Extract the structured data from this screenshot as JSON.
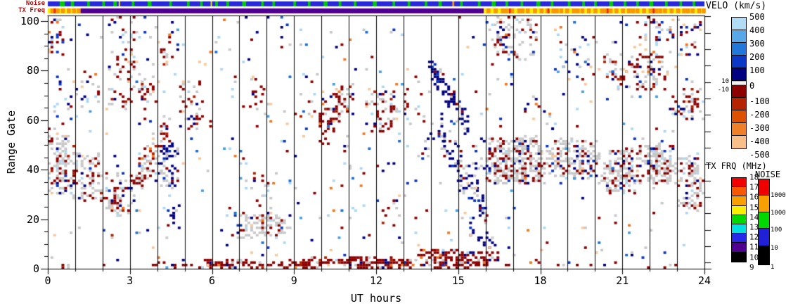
{
  "chart_data": {
    "type": "heatmap",
    "xlabel": "UT hours",
    "ylabel": "Range Gate",
    "x_range": [
      0,
      24
    ],
    "x_major_ticks": [
      "0",
      "3",
      "6",
      "9",
      "12",
      "15",
      "18",
      "21",
      "24"
    ],
    "x_minor_step": 1,
    "y_range": [
      0,
      102
    ],
    "y_major_ticks": [
      "0",
      "20",
      "40",
      "60",
      "80",
      "100"
    ],
    "y_minor_step": 5,
    "grid_vertical_lines_every_hour": true,
    "colorbars": {
      "velo": {
        "title": "VELO (km/s)",
        "tick_labels": [
          "500",
          "400",
          "300",
          "200",
          "100",
          "0",
          "-100",
          "-200",
          "-300",
          "-400",
          "-500"
        ],
        "positive_colors": [
          "#b0dcf4",
          "#58a8e8",
          "#2278d8",
          "#0c38c8",
          "#000080"
        ],
        "negative_colors": [
          "#8c0000",
          "#b42400",
          "#dc5000",
          "#f08028",
          "#f8c088"
        ],
        "ground_scatter": {
          "labels": [
            "10",
            "-10"
          ],
          "color": "#c8c8c8"
        }
      },
      "txfreq": {
        "title": "TX FRQ (MHz)",
        "tick_labels": [
          "18",
          "17",
          "16",
          "15",
          "14",
          "13",
          "12",
          "11",
          "10",
          "9"
        ],
        "colors": [
          "#f00000",
          "#f85800",
          "#f8a000",
          "#f8f000",
          "#00d800",
          "#00e0e0",
          "#2828e8",
          "#500090",
          "#000000"
        ]
      },
      "noise": {
        "title": "NOISE",
        "tick_labels": [
          "10000",
          "1000",
          "100",
          "10",
          "1"
        ],
        "colors": [
          "#f00000",
          "#f8a000",
          "#00d800",
          "#2020d8",
          "#000000"
        ]
      }
    },
    "strips": {
      "label_color": "#aa1111",
      "noise": {
        "label": "Noise",
        "base_color": "#2828dc",
        "green_color": "#00cc00",
        "green_segments": [
          [
            0.018,
            0.026
          ],
          [
            0.035,
            0.04
          ],
          [
            0.06,
            0.064
          ],
          [
            0.083,
            0.087
          ],
          [
            0.1,
            0.105
          ],
          [
            0.128,
            0.132
          ],
          [
            0.152,
            0.158
          ],
          [
            0.185,
            0.189
          ],
          [
            0.212,
            0.216
          ],
          [
            0.232,
            0.236
          ],
          [
            0.255,
            0.259
          ],
          [
            0.272,
            0.276
          ],
          [
            0.296,
            0.302
          ],
          [
            0.325,
            0.329
          ],
          [
            0.342,
            0.346
          ],
          [
            0.374,
            0.378
          ],
          [
            0.396,
            0.4
          ],
          [
            0.42,
            0.426
          ],
          [
            0.443,
            0.447
          ],
          [
            0.466,
            0.47
          ],
          [
            0.495,
            0.501
          ],
          [
            0.525,
            0.529
          ],
          [
            0.548,
            0.552
          ],
          [
            0.574,
            0.578
          ],
          [
            0.595,
            0.6
          ],
          [
            0.628,
            0.632
          ],
          [
            0.655,
            0.659
          ],
          [
            0.676,
            0.682
          ],
          [
            0.697,
            0.701
          ],
          [
            0.72,
            0.724
          ],
          [
            0.744,
            0.75
          ],
          [
            0.766,
            0.77
          ],
          [
            0.792,
            0.796
          ],
          [
            0.814,
            0.818
          ],
          [
            0.832,
            0.836
          ],
          [
            0.855,
            0.861
          ],
          [
            0.877,
            0.881
          ],
          [
            0.896,
            0.9
          ],
          [
            0.916,
            0.922
          ],
          [
            0.94,
            0.944
          ],
          [
            0.962,
            0.966
          ],
          [
            0.982,
            0.986
          ]
        ],
        "accents": [
          {
            "f0": 0.108,
            "f1": 0.11,
            "color": "#f8ec00"
          },
          {
            "f0": 0.248,
            "f1": 0.25,
            "color": "#f8ec00"
          },
          {
            "f0": 0.616,
            "f1": 0.619,
            "color": "#f89800"
          }
        ]
      },
      "txfreq": {
        "label": "TX Freq",
        "segments": [
          {
            "f0": 0.0,
            "f1": 0.048,
            "color": "#f8ec00"
          },
          {
            "f0": 0.048,
            "f1": 0.664,
            "color": "#500090"
          },
          {
            "f0": 0.664,
            "f1": 1.0,
            "color": "#f8ec00"
          }
        ],
        "orange_color": "#f89800",
        "orange_tick_width": 0.006,
        "orange_ticks": [
          0.004,
          0.012,
          0.02,
          0.029,
          0.037,
          0.044,
          0.668,
          0.679,
          0.69,
          0.695,
          0.704,
          0.715,
          0.72,
          0.728,
          0.739,
          0.749,
          0.758,
          0.767,
          0.772,
          0.779,
          0.788,
          0.798,
          0.804,
          0.811,
          0.821,
          0.831,
          0.841,
          0.846,
          0.854,
          0.863,
          0.873,
          0.882,
          0.888,
          0.895,
          0.905,
          0.915,
          0.924,
          0.93,
          0.937,
          0.947,
          0.957,
          0.966,
          0.972,
          0.979,
          0.989,
          0.996
        ],
        "red_color": "#e82800",
        "red_tick_width": 0.003,
        "red_ticks": [
          0.009,
          0.702,
          0.761,
          0.851,
          0.921
        ]
      }
    },
    "cells": {
      "seed": 20240,
      "dt": 0.1,
      "colors": {
        "navy": "#000080",
        "blue": "#0a35c0",
        "medblue": "#1e6fd0",
        "sky": "#4a9ee0",
        "lightblue": "#aed7f2",
        "darkred": "#8b0000",
        "red": "#b22000",
        "orange": "#f07820",
        "peach": "#f8c89a",
        "gray": "#c8c8c8"
      },
      "palettes": {
        "gs_mixed": [
          [
            "gray",
            60
          ],
          [
            "darkred",
            20
          ],
          [
            "navy",
            6
          ],
          [
            "blue",
            4
          ],
          [
            "lightblue",
            4
          ],
          [
            "peach",
            3
          ],
          [
            "red",
            3
          ]
        ],
        "red_gs": [
          [
            "darkred",
            45
          ],
          [
            "gray",
            33
          ],
          [
            "navy",
            8
          ],
          [
            "red",
            5
          ],
          [
            "peach",
            4
          ],
          [
            "lightblue",
            5
          ]
        ],
        "red": [
          [
            "darkred",
            70
          ],
          [
            "red",
            10
          ],
          [
            "gray",
            9
          ],
          [
            "navy",
            6
          ],
          [
            "peach",
            3
          ],
          [
            "orange",
            2
          ]
        ],
        "navy": [
          [
            "navy",
            78
          ],
          [
            "blue",
            8
          ],
          [
            "gray",
            8
          ],
          [
            "darkred",
            4
          ],
          [
            "lightblue",
            2
          ]
        ],
        "navy_gs": [
          [
            "navy",
            50
          ],
          [
            "gray",
            36
          ],
          [
            "darkred",
            8
          ],
          [
            "blue",
            6
          ]
        ],
        "red_navy": [
          [
            "darkred",
            40
          ],
          [
            "navy",
            20
          ],
          [
            "gray",
            22
          ],
          [
            "red",
            6
          ],
          [
            "peach",
            6
          ],
          [
            "lightblue",
            6
          ]
        ],
        "mixed": [
          [
            "darkred",
            26
          ],
          [
            "navy",
            22
          ],
          [
            "gray",
            18
          ],
          [
            "lightblue",
            12
          ],
          [
            "peach",
            9
          ],
          [
            "orange",
            6
          ],
          [
            "blue",
            7
          ]
        ],
        "gs_red": [
          [
            "gray",
            64
          ],
          [
            "darkred",
            24
          ],
          [
            "navy",
            5
          ],
          [
            "lightblue",
            3
          ],
          [
            "peach",
            2
          ],
          [
            "blue",
            2
          ]
        ],
        "any": [
          [
            "darkred",
            16
          ],
          [
            "navy",
            13
          ],
          [
            "gray",
            15
          ],
          [
            "lightblue",
            15
          ],
          [
            "peach",
            13
          ],
          [
            "orange",
            8
          ],
          [
            "blue",
            8
          ],
          [
            "medblue",
            6
          ],
          [
            "sky",
            6
          ]
        ],
        "red_bottom": [
          [
            "darkred",
            78
          ],
          [
            "red",
            6
          ],
          [
            "gray",
            8
          ],
          [
            "navy",
            4
          ],
          [
            "orange",
            2
          ],
          [
            "lightblue",
            2
          ]
        ]
      },
      "clusters": [
        {
          "t0": 0.0,
          "t1": 0.9,
          "g0": 30,
          "g1": 53,
          "d": 0.55,
          "p": "gs_mixed"
        },
        {
          "t0": 0.9,
          "t1": 1.9,
          "g0": 27,
          "g1": 47,
          "d": 0.5,
          "p": "gs_mixed"
        },
        {
          "t0": 1.9,
          "t1": 2.7,
          "g0": 23,
          "g1": 38,
          "d": 0.4,
          "p": "gs_mixed"
        },
        {
          "t0": 0.0,
          "t1": 0.35,
          "g0": 52,
          "g1": 62,
          "d": 0.25,
          "p": "mixed"
        },
        {
          "t0": 0.0,
          "t1": 1.4,
          "g0": 56,
          "g1": 76,
          "d": 0.08,
          "p": "mixed"
        },
        {
          "t0": 0.0,
          "t1": 0.55,
          "g0": 86,
          "g1": 101,
          "d": 0.3,
          "p": "mixed"
        },
        {
          "t0": 1.1,
          "t1": 2.2,
          "g0": 62,
          "g1": 80,
          "d": 0.05,
          "p": "mixed"
        },
        {
          "t0": 2.2,
          "t1": 3.4,
          "g0": 64,
          "g1": 102,
          "d": 0.2,
          "p": "red_gs"
        },
        {
          "diag": 1,
          "t0": 2.3,
          "t1": 4.4,
          "c0": 20,
          "c1": 56,
          "hw": 8,
          "d": 0.32,
          "p": "red_gs"
        },
        {
          "diag": 1,
          "t0": 3.4,
          "t1": 4.5,
          "c0": 68,
          "c1": 90,
          "hw": 7,
          "d": 0.24,
          "p": "red_gs"
        },
        {
          "t0": 3.9,
          "t1": 4.75,
          "g0": 32,
          "g1": 50,
          "d": 0.45,
          "p": "navy_gs"
        },
        {
          "t0": 4.35,
          "t1": 4.8,
          "g0": 16,
          "g1": 26,
          "d": 0.5,
          "p": "navy"
        },
        {
          "t0": 4.8,
          "t1": 5.6,
          "g0": 60,
          "g1": 76,
          "d": 0.28,
          "p": "red_navy"
        },
        {
          "t0": 4.8,
          "t1": 5.9,
          "g0": 55,
          "g1": 62,
          "d": 0.15,
          "p": "red"
        },
        {
          "t0": 6.9,
          "t1": 8.8,
          "g0": 12,
          "g1": 22,
          "d": 0.38,
          "p": "gs_red"
        },
        {
          "t0": 7.2,
          "t1": 8.2,
          "g0": 26,
          "g1": 38,
          "d": 0.2,
          "p": "red_gs"
        },
        {
          "t0": 7.25,
          "t1": 7.85,
          "g0": 64,
          "g1": 77,
          "d": 0.28,
          "p": "red"
        },
        {
          "t0": 8.0,
          "t1": 8.5,
          "g0": 58,
          "g1": 68,
          "d": 0.08,
          "p": "mixed"
        },
        {
          "t0": 9.0,
          "t1": 9.8,
          "g0": 60,
          "g1": 71,
          "d": 0.14,
          "p": "red_gs"
        },
        {
          "diag": 1,
          "t0": 9.9,
          "t1": 11.15,
          "c0": 58,
          "c1": 70,
          "hw": 8,
          "d": 0.33,
          "p": "red"
        },
        {
          "t0": 11.6,
          "t1": 12.85,
          "g0": 55,
          "g1": 72,
          "d": 0.3,
          "p": "red_gs"
        },
        {
          "t0": 12.2,
          "t1": 13.4,
          "g0": 18,
          "g1": 30,
          "d": 0.08,
          "p": "red_gs"
        },
        {
          "t0": 13.0,
          "t1": 13.9,
          "g0": 58,
          "g1": 72,
          "d": 0.12,
          "p": "red_gs"
        },
        {
          "t0": 10.5,
          "t1": 11.4,
          "g0": 36,
          "g1": 50,
          "d": 0.05,
          "p": "mixed"
        },
        {
          "diag": 1,
          "t0": 13.9,
          "t1": 15.35,
          "c0": 82,
          "c1": 56,
          "hw": 5,
          "d": 0.5,
          "p": "navy"
        },
        {
          "diag": 1,
          "t0": 14.25,
          "t1": 15.95,
          "c0": 56,
          "c1": 22,
          "hw": 8,
          "d": 0.45,
          "p": "navy_gs"
        },
        {
          "t0": 13.55,
          "t1": 14.15,
          "g0": 44,
          "g1": 54,
          "d": 0.3,
          "p": "navy_gs"
        },
        {
          "t0": 15.5,
          "t1": 16.1,
          "g0": 40,
          "g1": 52,
          "d": 0.3,
          "p": "navy_gs"
        },
        {
          "diag": 1,
          "t0": 15.3,
          "t1": 16.5,
          "c0": 18,
          "c1": 7,
          "hw": 4,
          "d": 0.25,
          "p": "navy"
        },
        {
          "t0": 16.0,
          "t1": 18.2,
          "g0": 34,
          "g1": 53,
          "d": 0.55,
          "p": "gs_red"
        },
        {
          "t0": 18.2,
          "t1": 20.1,
          "g0": 36,
          "g1": 52,
          "d": 0.5,
          "p": "gs_red"
        },
        {
          "t0": 20.1,
          "t1": 21.6,
          "g0": 30,
          "g1": 48,
          "d": 0.5,
          "p": "gs_red"
        },
        {
          "t0": 21.6,
          "t1": 23.0,
          "g0": 33,
          "g1": 50,
          "d": 0.55,
          "p": "gs_red"
        },
        {
          "t0": 23.0,
          "t1": 24.0,
          "g0": 24,
          "g1": 45,
          "d": 0.5,
          "p": "gs_red"
        },
        {
          "t0": 16.1,
          "t1": 17.9,
          "g0": 84,
          "g1": 101,
          "d": 0.28,
          "p": "gs_mixed"
        },
        {
          "t0": 16.3,
          "t1": 16.75,
          "g0": 90,
          "g1": 98,
          "d": 0.35,
          "p": "navy"
        },
        {
          "t0": 17.0,
          "t1": 19.0,
          "g0": 55,
          "g1": 70,
          "d": 0.05,
          "p": "mixed"
        },
        {
          "t0": 18.4,
          "t1": 20.2,
          "g0": 78,
          "g1": 95,
          "d": 0.09,
          "p": "mixed"
        },
        {
          "t0": 20.3,
          "t1": 22.7,
          "g0": 72,
          "g1": 86,
          "d": 0.3,
          "p": "red_gs"
        },
        {
          "t0": 22.7,
          "t1": 24.0,
          "g0": 60,
          "g1": 72,
          "d": 0.38,
          "p": "red_gs"
        },
        {
          "t0": 21.0,
          "t1": 24.0,
          "g0": 86,
          "g1": 101,
          "d": 0.12,
          "p": "mixed"
        },
        {
          "t0": 0.2,
          "t1": 1.3,
          "g0": 0,
          "g1": 2,
          "d": 0.15,
          "p": "mixed"
        },
        {
          "t0": 1.3,
          "t1": 3.6,
          "g0": 0,
          "g1": 1,
          "d": 0.05,
          "p": "red_bottom"
        },
        {
          "t0": 3.6,
          "t1": 5.2,
          "g0": 0,
          "g1": 2,
          "d": 0.25,
          "p": "red_bottom"
        },
        {
          "t0": 5.2,
          "t1": 9.0,
          "g0": 0,
          "g1": 3,
          "d": 0.5,
          "p": "red_bottom"
        },
        {
          "t0": 9.0,
          "t1": 13.5,
          "g0": 0,
          "g1": 4,
          "d": 0.62,
          "p": "red_bottom"
        },
        {
          "t0": 13.5,
          "t1": 16.4,
          "g0": 0,
          "g1": 7,
          "d": 0.5,
          "p": "red_bottom"
        },
        {
          "t0": 16.4,
          "t1": 24.0,
          "g0": 0,
          "g1": 2,
          "d": 0.12,
          "p": "red_bottom"
        },
        {
          "t0": 0.0,
          "t1": 24.0,
          "g0": 0,
          "g1": 102,
          "d": 0.018,
          "p": "any"
        }
      ]
    }
  }
}
